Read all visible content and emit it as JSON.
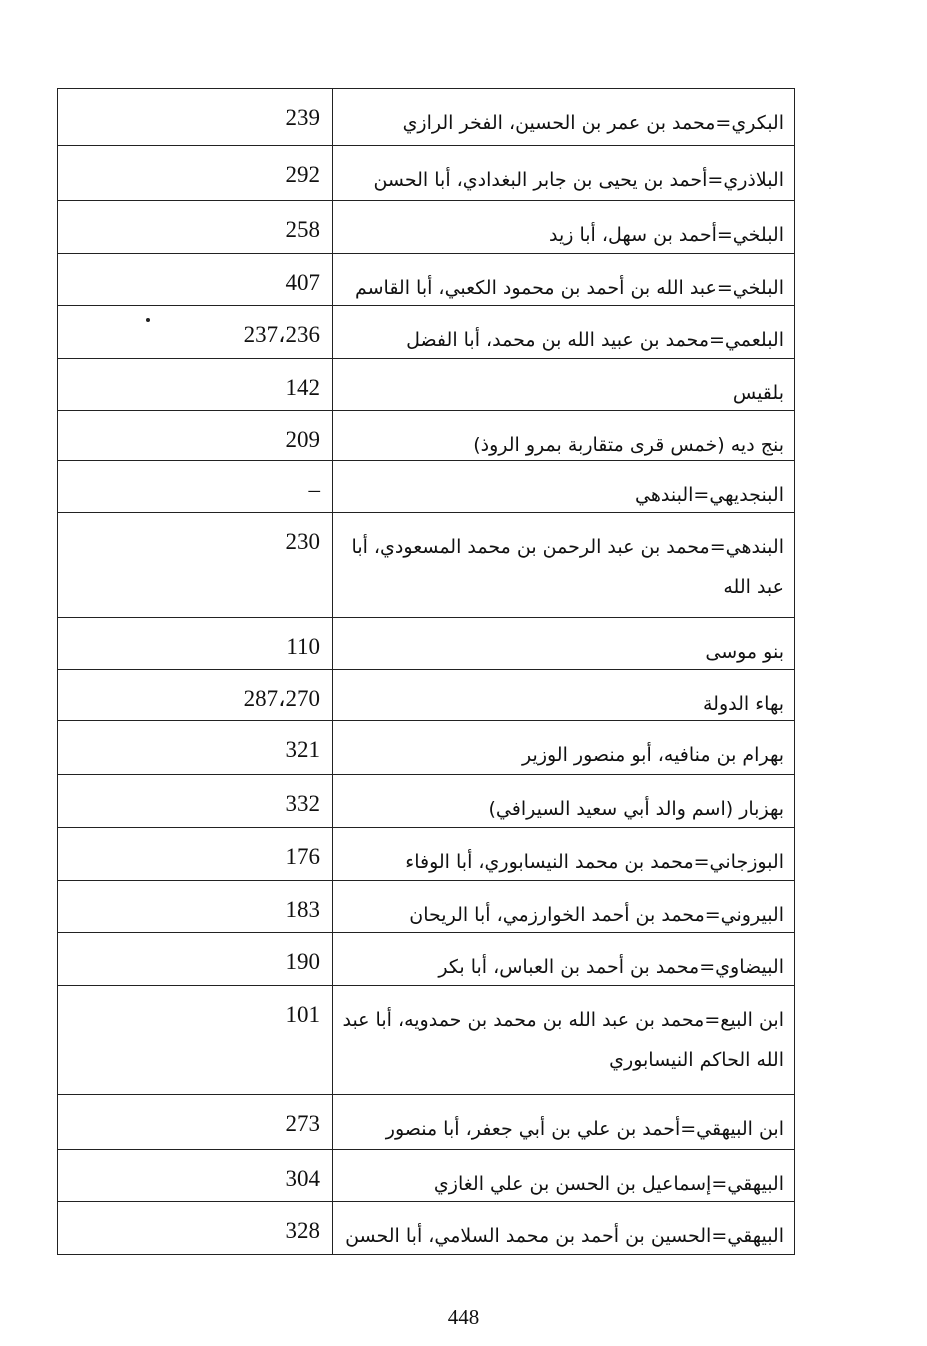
{
  "index_table": {
    "rows": [
      {
        "name": "البكري=محمد بن عمر بن الحسين، الفخر الرازي",
        "pages": "239"
      },
      {
        "name": "البلاذري=أحمد بن يحيى بن جابر البغدادي، أبا الحسن",
        "pages": "292"
      },
      {
        "name": "البلخي=أحمد بن سهل، أبا زيد",
        "pages": "258"
      },
      {
        "name": "البلخي=عبد الله بن أحمد بن محمود الكعبي، أبا القاسم",
        "pages": "407"
      },
      {
        "name": "البلعمي=محمد بن عبيد الله بن محمد، أبا الفضل",
        "pages": "237،236"
      },
      {
        "name": "بلقيس",
        "pages": "142"
      },
      {
        "name": "بنج ديه (خمس قرى متقاربة بمرو الروذ)",
        "pages": "209"
      },
      {
        "name": "البنجديهي=البندهي",
        "pages": "–"
      },
      {
        "name": "البندهي=محمد بن عبد الرحمن بن محمد المسعودي، أبا عبد الله",
        "pages": "230",
        "tall": true
      },
      {
        "name": "بنو موسى",
        "pages": "110"
      },
      {
        "name": "بهاء الدولة",
        "pages": "287،270"
      },
      {
        "name": "بهرام بن منافيه، أبو منصور الوزير",
        "pages": "321"
      },
      {
        "name": "بهزبار (اسم والد أبي سعيد السيرافي)",
        "pages": "332"
      },
      {
        "name": "البوزجاني=محمد بن محمد النيسابوري، أبا الوفاء",
        "pages": "176"
      },
      {
        "name": "البيروني=محمد بن أحمد الخوارزمي، أبا الريحان",
        "pages": "183"
      },
      {
        "name": "البيضاوي=محمد بن أحمد بن العباس، أبا بكر",
        "pages": "190"
      },
      {
        "name": "ابن البيع=محمد بن عبد الله بن محمد بن حمدويه، أبا عبد الله الحاكم النيسابوري",
        "pages": "101",
        "tall": true
      },
      {
        "name": "ابن البيهقي=أحمد بن علي بن أبي جعفر، أبا منصور",
        "pages": "273"
      },
      {
        "name": "البيهقي=إسماعيل بن الحسن بن علي الغازي",
        "pages": "304"
      },
      {
        "name": "البيهقي=الحسين بن أحمد بن محمد السلامي، أبا الحسن",
        "pages": "328"
      }
    ]
  },
  "page_number": "448"
}
